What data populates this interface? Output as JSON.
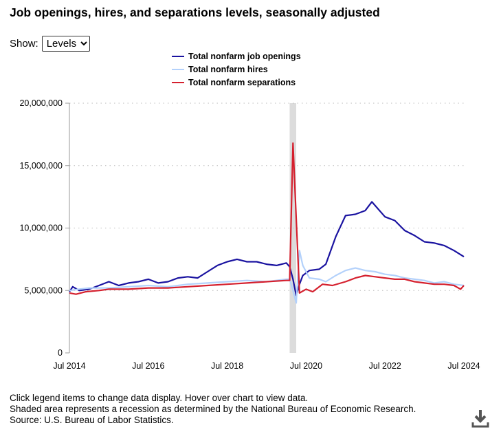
{
  "title": "Job openings, hires, and separations levels, seasonally adjusted",
  "show": {
    "label": "Show:",
    "selected": "Levels"
  },
  "notes": [
    "Click legend items to change data display. Hover over chart to view data.",
    "Shaded area represents a recession as determined by the National Bureau of Economic Research.",
    "Source: U.S. Bureau of Labor Statistics."
  ],
  "download_icon": "download-icon",
  "chart_data": {
    "type": "line",
    "title": "Job openings, hires, and separations levels, seasonally adjusted",
    "ylim": [
      0,
      20000000
    ],
    "yticks": [
      0,
      5000000,
      10000000,
      15000000,
      20000000
    ],
    "ytick_labels": [
      "0",
      "5,000,000",
      "10,000,000",
      "15,000,000",
      "20,000,000"
    ],
    "xlim": [
      "2014-07",
      "2024-07"
    ],
    "xticks": [
      "2014-07",
      "2016-07",
      "2018-07",
      "2020-07",
      "2022-07",
      "2024-07"
    ],
    "xtick_labels": [
      "Jul 2014",
      "Jul 2016",
      "Jul 2018",
      "Jul 2020",
      "Jul 2022",
      "Jul 2024"
    ],
    "grid": "horizontal dotted",
    "legend_placement": "top",
    "recession": [
      "2020-02",
      "2020-04"
    ],
    "series": [
      {
        "name": "Total nonfarm job openings",
        "color": "#1a13a0",
        "points": [
          [
            "2014-07",
            4900000
          ],
          [
            "2014-08",
            5300000
          ],
          [
            "2014-10",
            5000000
          ],
          [
            "2015-01",
            5100000
          ],
          [
            "2015-04",
            5400000
          ],
          [
            "2015-07",
            5700000
          ],
          [
            "2015-10",
            5400000
          ],
          [
            "2016-01",
            5600000
          ],
          [
            "2016-04",
            5700000
          ],
          [
            "2016-07",
            5900000
          ],
          [
            "2016-10",
            5600000
          ],
          [
            "2017-01",
            5700000
          ],
          [
            "2017-04",
            6000000
          ],
          [
            "2017-07",
            6100000
          ],
          [
            "2017-10",
            6000000
          ],
          [
            "2018-01",
            6500000
          ],
          [
            "2018-04",
            7000000
          ],
          [
            "2018-07",
            7300000
          ],
          [
            "2018-10",
            7500000
          ],
          [
            "2019-01",
            7300000
          ],
          [
            "2019-04",
            7300000
          ],
          [
            "2019-07",
            7100000
          ],
          [
            "2019-10",
            7000000
          ],
          [
            "2020-01",
            7200000
          ],
          [
            "2020-02",
            6900000
          ],
          [
            "2020-03",
            5900000
          ],
          [
            "2020-04",
            4600000
          ],
          [
            "2020-05",
            5500000
          ],
          [
            "2020-06",
            6200000
          ],
          [
            "2020-08",
            6600000
          ],
          [
            "2020-11",
            6700000
          ],
          [
            "2021-01",
            7100000
          ],
          [
            "2021-04",
            9300000
          ],
          [
            "2021-07",
            11000000
          ],
          [
            "2021-10",
            11100000
          ],
          [
            "2022-01",
            11400000
          ],
          [
            "2022-03",
            12100000
          ],
          [
            "2022-07",
            10900000
          ],
          [
            "2022-10",
            10600000
          ],
          [
            "2023-01",
            9800000
          ],
          [
            "2023-04",
            9400000
          ],
          [
            "2023-07",
            8900000
          ],
          [
            "2023-10",
            8800000
          ],
          [
            "2024-01",
            8600000
          ],
          [
            "2024-04",
            8200000
          ],
          [
            "2024-07",
            7700000
          ]
        ]
      },
      {
        "name": "Total nonfarm hires",
        "color": "#b3d1fb",
        "points": [
          [
            "2014-07",
            5000000
          ],
          [
            "2014-10",
            5100000
          ],
          [
            "2015-01",
            5200000
          ],
          [
            "2015-07",
            5200000
          ],
          [
            "2016-01",
            5300000
          ],
          [
            "2016-07",
            5400000
          ],
          [
            "2017-01",
            5300000
          ],
          [
            "2017-07",
            5500000
          ],
          [
            "2018-01",
            5600000
          ],
          [
            "2018-07",
            5700000
          ],
          [
            "2019-01",
            5800000
          ],
          [
            "2019-07",
            5700000
          ],
          [
            "2020-01",
            5900000
          ],
          [
            "2020-02",
            5900000
          ],
          [
            "2020-03",
            5000000
          ],
          [
            "2020-04",
            4000000
          ],
          [
            "2020-05",
            8200000
          ],
          [
            "2020-06",
            7000000
          ],
          [
            "2020-08",
            6000000
          ],
          [
            "2020-11",
            5900000
          ],
          [
            "2021-01",
            5700000
          ],
          [
            "2021-04",
            6200000
          ],
          [
            "2021-07",
            6600000
          ],
          [
            "2021-10",
            6800000
          ],
          [
            "2022-01",
            6600000
          ],
          [
            "2022-04",
            6500000
          ],
          [
            "2022-07",
            6300000
          ],
          [
            "2022-10",
            6200000
          ],
          [
            "2023-01",
            6000000
          ],
          [
            "2023-04",
            5900000
          ],
          [
            "2023-07",
            5800000
          ],
          [
            "2023-10",
            5600000
          ],
          [
            "2024-01",
            5700000
          ],
          [
            "2024-04",
            5500000
          ],
          [
            "2024-07",
            5400000
          ]
        ]
      },
      {
        "name": "Total nonfarm separations",
        "color": "#d5202e",
        "points": [
          [
            "2014-07",
            4800000
          ],
          [
            "2014-09",
            4700000
          ],
          [
            "2014-12",
            4900000
          ],
          [
            "2015-04",
            5000000
          ],
          [
            "2015-07",
            5100000
          ],
          [
            "2016-01",
            5100000
          ],
          [
            "2016-07",
            5200000
          ],
          [
            "2017-01",
            5200000
          ],
          [
            "2017-07",
            5300000
          ],
          [
            "2018-01",
            5400000
          ],
          [
            "2018-07",
            5500000
          ],
          [
            "2019-01",
            5600000
          ],
          [
            "2019-07",
            5700000
          ],
          [
            "2020-01",
            5800000
          ],
          [
            "2020-02",
            5800000
          ],
          [
            "2020-03",
            16800000
          ],
          [
            "2020-04",
            10800000
          ],
          [
            "2020-05",
            4800000
          ],
          [
            "2020-07",
            5100000
          ],
          [
            "2020-09",
            4900000
          ],
          [
            "2020-12",
            5500000
          ],
          [
            "2021-03",
            5400000
          ],
          [
            "2021-07",
            5700000
          ],
          [
            "2021-10",
            6000000
          ],
          [
            "2022-01",
            6200000
          ],
          [
            "2022-04",
            6100000
          ],
          [
            "2022-07",
            6000000
          ],
          [
            "2022-10",
            5900000
          ],
          [
            "2023-01",
            5900000
          ],
          [
            "2023-04",
            5700000
          ],
          [
            "2023-07",
            5600000
          ],
          [
            "2023-10",
            5500000
          ],
          [
            "2024-01",
            5500000
          ],
          [
            "2024-04",
            5400000
          ],
          [
            "2024-06",
            5100000
          ],
          [
            "2024-07",
            5400000
          ]
        ]
      }
    ]
  }
}
